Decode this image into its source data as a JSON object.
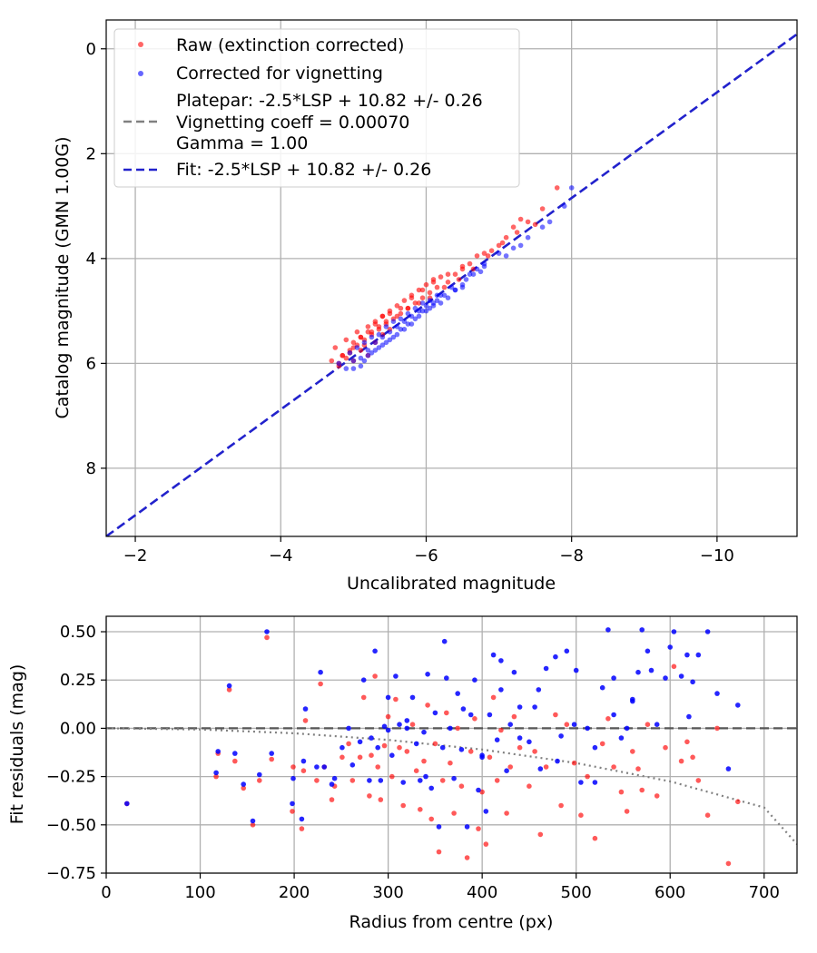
{
  "chart_data": [
    {
      "type": "scatter",
      "xlabel": "Uncalibrated magnitude",
      "ylabel": "Catalog magnitude (GMN 1.00G)",
      "xlim": [
        -1.6,
        -11.1
      ],
      "ylim": [
        9.3,
        -0.55
      ],
      "x_ticks": [
        -2,
        -4,
        -6,
        -8,
        -10
      ],
      "x_tick_labels": [
        "−2",
        "−4",
        "−6",
        "−8",
        "−10"
      ],
      "y_ticks": [
        0,
        2,
        4,
        6,
        8
      ],
      "y_tick_labels": [
        "0",
        "2",
        "4",
        "6",
        "8"
      ],
      "grid": true,
      "legend_position": "top-left",
      "legend": {
        "raw": "Raw (extinction corrected)",
        "corrected": "Corrected for vignetting",
        "platepar_line1": "Platepar: -2.5*LSP + 10.82 +/- 0.26",
        "platepar_line2": "Vignetting coeff = 0.00070",
        "platepar_line3": "Gamma = 1.00",
        "fit": "Fit: -2.5*LSP + 10.82 +/- 0.26"
      },
      "colors": {
        "raw": "#ff0000",
        "corrected": "#0000ff",
        "fit": "#2222cc",
        "platepar": "#808080"
      },
      "lines": [
        {
          "name": "Fit: -2.5*LSP + 10.82 +/- 0.26",
          "x": [
            -1.6,
            -11.1
          ],
          "y": [
            9.3,
            -0.28
          ]
        },
        {
          "name": "Platepar: -2.5*LSP + 10.82 +/- 0.26",
          "x": [
            -1.6,
            -11.1
          ],
          "y": [
            9.3,
            -0.28
          ]
        }
      ],
      "series": [
        {
          "name": "Raw (extinction corrected)",
          "x": [
            -4.7,
            -4.75,
            -4.8,
            -4.85,
            -4.9,
            -4.9,
            -4.95,
            -5.0,
            -5.0,
            -5.05,
            -5.1,
            -5.1,
            -5.15,
            -5.2,
            -5.2,
            -5.25,
            -5.3,
            -5.3,
            -5.35,
            -5.4,
            -5.4,
            -5.45,
            -5.5,
            -5.5,
            -5.55,
            -5.6,
            -5.65,
            -5.7,
            -5.75,
            -5.8,
            -5.85,
            -5.9,
            -5.95,
            -6.0,
            -6.05,
            -6.1,
            -6.15,
            -6.2,
            -6.3,
            -6.4,
            -6.5,
            -6.6,
            -6.7,
            -6.8,
            -6.9,
            -7.0,
            -7.1,
            -7.2,
            -7.3,
            -7.5,
            -7.6,
            -7.8,
            -4.8,
            -4.95,
            -5.05,
            -5.15,
            -5.25,
            -5.35,
            -5.45,
            -5.6,
            -5.75,
            -5.9,
            -6.05,
            -6.25,
            -6.45,
            -6.65,
            -6.85,
            -7.05,
            -7.25,
            -7.4,
            -4.85,
            -5.0,
            -5.1,
            -5.2,
            -5.3,
            -5.4,
            -5.5,
            -5.65,
            -5.8,
            -5.95,
            -6.1,
            -6.3,
            -6.5
          ],
          "y": [
            5.95,
            5.7,
            6.05,
            5.85,
            5.9,
            5.55,
            5.75,
            5.6,
            5.95,
            5.4,
            5.5,
            5.75,
            5.65,
            5.3,
            5.85,
            5.45,
            5.2,
            5.6,
            5.35,
            5.1,
            5.45,
            5.25,
            5.0,
            5.35,
            5.15,
            4.9,
            5.05,
            4.8,
            4.95,
            4.7,
            4.85,
            4.6,
            4.75,
            4.5,
            4.65,
            4.4,
            4.55,
            4.35,
            4.45,
            4.3,
            4.2,
            4.1,
            3.95,
            3.9,
            3.85,
            3.75,
            3.6,
            3.4,
            3.25,
            3.35,
            3.05,
            2.65,
            6.0,
            5.8,
            5.65,
            5.55,
            5.4,
            5.3,
            5.2,
            5.1,
            4.95,
            4.85,
            4.75,
            4.55,
            4.4,
            4.2,
            3.95,
            3.7,
            3.5,
            3.3,
            5.85,
            5.7,
            5.5,
            5.4,
            5.25,
            5.1,
            5.05,
            4.95,
            4.75,
            4.6,
            4.45,
            4.3,
            4.15
          ]
        },
        {
          "name": "Corrected for vignetting",
          "x": [
            -4.8,
            -4.9,
            -4.95,
            -5.0,
            -5.05,
            -5.1,
            -5.15,
            -5.2,
            -5.25,
            -5.3,
            -5.35,
            -5.4,
            -5.45,
            -5.5,
            -5.55,
            -5.6,
            -5.65,
            -5.7,
            -5.75,
            -5.8,
            -5.85,
            -5.9,
            -5.95,
            -6.0,
            -6.05,
            -6.1,
            -6.15,
            -6.2,
            -6.3,
            -6.4,
            -6.5,
            -6.6,
            -6.7,
            -6.8,
            -7.0,
            -7.2,
            -7.4,
            -7.7,
            -7.9,
            -8.0,
            -5.0,
            -5.1,
            -5.2,
            -5.3,
            -5.4,
            -5.5,
            -5.6,
            -5.7,
            -5.8,
            -5.9,
            -6.0,
            -6.1,
            -6.2,
            -6.35,
            -6.5,
            -6.65,
            -6.8,
            -7.1,
            -7.3,
            -7.6,
            -5.15,
            -5.25,
            -5.35,
            -5.45,
            -5.55,
            -5.65,
            -5.75,
            -5.85,
            -5.95,
            -6.05,
            -6.15,
            -6.25,
            -6.4,
            -6.55,
            -6.75
          ],
          "y": [
            6.0,
            6.1,
            5.8,
            5.95,
            5.7,
            6.05,
            5.6,
            5.85,
            5.5,
            5.75,
            5.45,
            5.65,
            5.3,
            5.55,
            5.2,
            5.45,
            5.15,
            5.35,
            5.05,
            5.25,
            4.95,
            5.1,
            4.85,
            5.0,
            4.8,
            4.9,
            4.7,
            4.85,
            4.75,
            4.6,
            4.55,
            4.3,
            4.2,
            4.1,
            3.9,
            3.8,
            3.6,
            3.3,
            3.0,
            2.65,
            6.1,
            5.9,
            5.75,
            5.6,
            5.5,
            5.4,
            5.3,
            5.2,
            5.1,
            5.0,
            4.9,
            4.85,
            4.7,
            4.55,
            4.5,
            4.3,
            4.15,
            3.95,
            3.75,
            3.4,
            5.95,
            5.8,
            5.7,
            5.6,
            5.5,
            5.35,
            5.25,
            5.15,
            5.0,
            4.95,
            4.8,
            4.7,
            4.6,
            4.4,
            4.25
          ]
        }
      ]
    },
    {
      "type": "scatter",
      "xlabel": "Radius from centre (px)",
      "ylabel": "Fit residuals (mag)",
      "xlim": [
        0,
        735
      ],
      "ylim": [
        -0.75,
        0.58
      ],
      "x_ticks": [
        0,
        100,
        200,
        300,
        400,
        500,
        600,
        700
      ],
      "x_tick_labels": [
        "0",
        "100",
        "200",
        "300",
        "400",
        "500",
        "600",
        "700"
      ],
      "y_ticks": [
        0.5,
        0.25,
        0.0,
        -0.25,
        -0.5,
        -0.75
      ],
      "y_tick_labels": [
        "0.50",
        "0.25",
        "0.00",
        "−0.25",
        "−0.50",
        "−0.75"
      ],
      "grid": true,
      "lines": [
        {
          "name": "zero",
          "x": [
            0,
            735
          ],
          "y": [
            0,
            0
          ]
        },
        {
          "name": "vignetting",
          "x": [
            0,
            100,
            200,
            300,
            400,
            500,
            600,
            700,
            735
          ],
          "y": [
            0,
            -0.006,
            -0.026,
            -0.06,
            -0.11,
            -0.18,
            -0.275,
            -0.41,
            -0.6
          ]
        }
      ],
      "series": [
        {
          "name": "Raw (extinction corrected)",
          "x": [
            22,
            117,
            119,
            131,
            137,
            146,
            156,
            163,
            171,
            176,
            198,
            199,
            208,
            210,
            212,
            224,
            228,
            232,
            240,
            243,
            251,
            258,
            262,
            270,
            274,
            280,
            282,
            286,
            289,
            292,
            296,
            300,
            304,
            308,
            312,
            316,
            320,
            326,
            330,
            334,
            338,
            342,
            346,
            350,
            354,
            358,
            362,
            366,
            370,
            374,
            378,
            384,
            388,
            392,
            396,
            400,
            404,
            408,
            412,
            416,
            420,
            426,
            430,
            434,
            440,
            450,
            456,
            462,
            468,
            478,
            484,
            490,
            498,
            505,
            512,
            520,
            528,
            534,
            540,
            548,
            554,
            560,
            566,
            570,
            576,
            586,
            595,
            604,
            612,
            618,
            624,
            630,
            640,
            650,
            662,
            672
          ],
          "y": [
            -0.39,
            -0.25,
            -0.13,
            0.2,
            -0.17,
            -0.31,
            -0.5,
            -0.27,
            0.47,
            -0.16,
            -0.43,
            -0.2,
            -0.52,
            -0.22,
            0.04,
            -0.27,
            0.23,
            -0.2,
            -0.37,
            -0.3,
            -0.15,
            -0.08,
            -0.27,
            -0.15,
            0.16,
            -0.35,
            -0.14,
            0.27,
            -0.2,
            -0.37,
            -0.09,
            0.06,
            -0.25,
            0.15,
            -0.1,
            -0.4,
            -0.12,
            0.02,
            -0.22,
            -0.42,
            -0.17,
            0.12,
            -0.47,
            -0.08,
            -0.64,
            -0.27,
            0.08,
            -0.18,
            -0.44,
            0.0,
            -0.3,
            -0.67,
            -0.12,
            0.05,
            -0.52,
            -0.33,
            -0.6,
            -0.15,
            0.16,
            -0.27,
            -0.01,
            -0.44,
            -0.2,
            0.06,
            -0.1,
            -0.3,
            -0.12,
            -0.55,
            -0.2,
            0.07,
            -0.4,
            0.02,
            -0.18,
            -0.45,
            -0.25,
            -0.57,
            -0.08,
            0.05,
            -0.2,
            -0.33,
            -0.43,
            -0.12,
            -0.21,
            -0.32,
            0.02,
            -0.35,
            -0.1,
            0.32,
            -0.17,
            -0.07,
            -0.15,
            -0.27,
            -0.45,
            0.0,
            -0.7,
            -0.38
          ]
        },
        {
          "name": "Corrected for vignetting",
          "x": [
            22,
            117,
            119,
            131,
            137,
            146,
            156,
            163,
            171,
            176,
            198,
            199,
            208,
            210,
            212,
            224,
            228,
            232,
            240,
            243,
            251,
            258,
            262,
            270,
            274,
            280,
            282,
            286,
            289,
            292,
            296,
            300,
            304,
            308,
            312,
            316,
            320,
            326,
            330,
            334,
            338,
            342,
            346,
            350,
            354,
            358,
            362,
            366,
            370,
            374,
            378,
            384,
            388,
            392,
            396,
            400,
            404,
            408,
            412,
            416,
            420,
            426,
            430,
            434,
            440,
            450,
            456,
            462,
            468,
            478,
            484,
            490,
            498,
            505,
            512,
            520,
            528,
            534,
            540,
            548,
            554,
            560,
            566,
            570,
            576,
            586,
            595,
            604,
            612,
            618,
            624,
            630,
            640,
            650,
            662,
            672,
            300,
            320,
            340,
            360,
            380,
            400,
            420,
            440,
            460,
            480,
            500,
            520,
            540,
            560,
            580,
            600,
            620
          ],
          "y": [
            -0.39,
            -0.23,
            -0.12,
            0.22,
            -0.13,
            -0.29,
            -0.48,
            -0.24,
            0.5,
            -0.13,
            -0.39,
            -0.26,
            -0.47,
            -0.17,
            0.1,
            -0.2,
            0.29,
            -0.2,
            -0.29,
            -0.26,
            -0.1,
            0.0,
            -0.19,
            -0.07,
            0.25,
            -0.27,
            -0.05,
            0.4,
            -0.1,
            -0.27,
            0.01,
            0.16,
            -0.14,
            0.27,
            0.02,
            -0.28,
            0.0,
            0.16,
            -0.08,
            -0.27,
            -0.02,
            0.28,
            -0.31,
            0.08,
            -0.51,
            -0.1,
            0.26,
            0.0,
            -0.26,
            0.18,
            -0.11,
            -0.51,
            0.07,
            0.25,
            -0.32,
            -0.14,
            -0.43,
            0.07,
            0.38,
            -0.06,
            0.2,
            -0.22,
            0.02,
            0.29,
            0.11,
            -0.07,
            0.11,
            -0.21,
            0.31,
            0.37,
            -0.04,
            0.4,
            0.02,
            -0.28,
            0.0,
            -0.28,
            0.21,
            0.51,
            0.07,
            -0.05,
            0.0,
            0.15,
            0.29,
            0.51,
            0.4,
            0.02,
            0.26,
            0.5,
            0.27,
            0.38,
            0.24,
            0.38,
            0.5,
            0.18,
            -0.21,
            0.12,
            -0.01,
            0.04,
            -0.25,
            0.45,
            0.1,
            -0.15,
            0.35,
            -0.05,
            0.2,
            -0.17,
            0.3,
            -0.1,
            0.26,
            0.14,
            0.3,
            0.42,
            0.06
          ]
        }
      ]
    }
  ]
}
